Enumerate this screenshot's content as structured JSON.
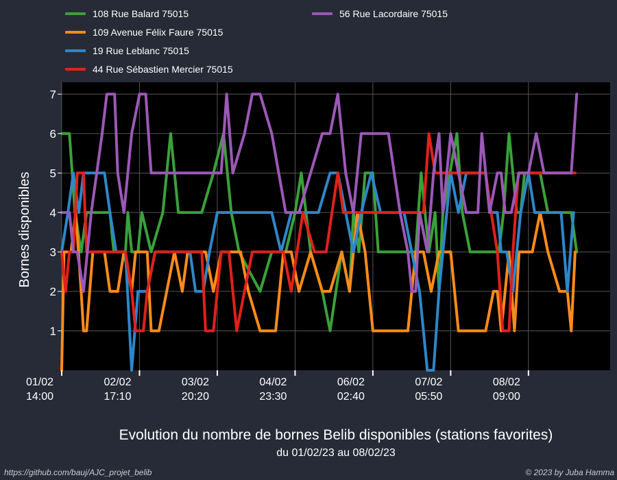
{
  "chart_data": {
    "type": "line",
    "title": "Evolution du nombre de bornes Belib disponibles (stations favorites)",
    "subtitle": "du 01/02/23 au 08/02/23",
    "ylabel": "Bornes disponibles",
    "xlabel": "",
    "xlim": [
      0,
      7.05
    ],
    "ylim": [
      0,
      7.3
    ],
    "y_ticks": [
      1,
      2,
      3,
      4,
      5,
      6,
      7
    ],
    "x_ticks": [
      {
        "t": 0,
        "line1": "01/02",
        "line2": "14:00"
      },
      {
        "t": 1,
        "line1": "02/02",
        "line2": "17:10"
      },
      {
        "t": 2,
        "line1": "03/02",
        "line2": "20:20"
      },
      {
        "t": 3,
        "line1": "04/02",
        "line2": "23:30"
      },
      {
        "t": 4,
        "line1": "06/02",
        "line2": "02:40"
      },
      {
        "t": 5,
        "line1": "07/02",
        "line2": "05:50"
      },
      {
        "t": 6,
        "line1": "08/02",
        "line2": "09:00"
      }
    ],
    "x_unit_note": "",
    "grid": true,
    "legend_position": "top",
    "series": [
      {
        "name": "108 Rue Balard 75015",
        "color": "#3aa13a",
        "points": [
          [
            0,
            6
          ],
          [
            0.1,
            6
          ],
          [
            0.17,
            4
          ],
          [
            0.25,
            3
          ],
          [
            0.32,
            4
          ],
          [
            0.62,
            4
          ],
          [
            0.67,
            3
          ],
          [
            0.82,
            3
          ],
          [
            0.85,
            4
          ],
          [
            0.9,
            3
          ],
          [
            0.98,
            3
          ],
          [
            1.03,
            4
          ],
          [
            1.15,
            3
          ],
          [
            1.3,
            4
          ],
          [
            1.4,
            6
          ],
          [
            1.5,
            4
          ],
          [
            1.65,
            4
          ],
          [
            1.8,
            4
          ],
          [
            1.95,
            5
          ],
          [
            2.08,
            6
          ],
          [
            2.18,
            4
          ],
          [
            2.28,
            3
          ],
          [
            2.55,
            2
          ],
          [
            2.7,
            3
          ],
          [
            2.88,
            3
          ],
          [
            3.0,
            4
          ],
          [
            3.08,
            5
          ],
          [
            3.2,
            3
          ],
          [
            3.35,
            2
          ],
          [
            3.45,
            1
          ],
          [
            3.6,
            3
          ],
          [
            3.7,
            2
          ],
          [
            3.75,
            4
          ],
          [
            3.82,
            3
          ],
          [
            3.9,
            5
          ],
          [
            4.0,
            5
          ],
          [
            4.07,
            3
          ],
          [
            4.4,
            3
          ],
          [
            4.55,
            3
          ],
          [
            4.62,
            5
          ],
          [
            4.72,
            3
          ],
          [
            4.8,
            4
          ],
          [
            4.85,
            2
          ],
          [
            4.9,
            4
          ],
          [
            5.08,
            6
          ],
          [
            5.15,
            4
          ],
          [
            5.25,
            3
          ],
          [
            5.5,
            3
          ],
          [
            5.62,
            3
          ],
          [
            5.68,
            4
          ],
          [
            5.75,
            6
          ],
          [
            5.85,
            4
          ],
          [
            5.9,
            4
          ],
          [
            5.95,
            5
          ],
          [
            6.0,
            5
          ],
          [
            6.15,
            5
          ],
          [
            6.25,
            4
          ],
          [
            6.4,
            4
          ],
          [
            6.55,
            4
          ],
          [
            6.62,
            3
          ]
        ]
      },
      {
        "name": "109 Avenue Félix Faure 75015",
        "color": "#ff8c19",
        "points": [
          [
            0,
            0
          ],
          [
            0.03,
            3
          ],
          [
            0.12,
            3
          ],
          [
            0.18,
            4
          ],
          [
            0.25,
            2
          ],
          [
            0.28,
            1
          ],
          [
            0.32,
            1
          ],
          [
            0.4,
            3
          ],
          [
            0.55,
            3
          ],
          [
            0.62,
            2
          ],
          [
            0.72,
            2
          ],
          [
            0.8,
            3
          ],
          [
            0.9,
            2
          ],
          [
            0.95,
            3
          ],
          [
            1.1,
            3
          ],
          [
            1.15,
            1
          ],
          [
            1.25,
            1
          ],
          [
            1.35,
            2
          ],
          [
            1.45,
            3
          ],
          [
            1.55,
            2
          ],
          [
            1.62,
            3
          ],
          [
            1.75,
            3
          ],
          [
            1.85,
            3
          ],
          [
            1.95,
            2
          ],
          [
            2.05,
            3
          ],
          [
            2.3,
            3
          ],
          [
            2.4,
            2
          ],
          [
            2.55,
            1
          ],
          [
            2.75,
            1
          ],
          [
            2.85,
            3
          ],
          [
            2.95,
            3
          ],
          [
            3.05,
            2
          ],
          [
            3.2,
            3
          ],
          [
            3.35,
            2
          ],
          [
            3.45,
            2
          ],
          [
            3.6,
            3
          ],
          [
            3.7,
            2
          ],
          [
            3.8,
            4
          ],
          [
            3.9,
            3
          ],
          [
            4.0,
            1
          ],
          [
            4.45,
            1
          ],
          [
            4.55,
            3
          ],
          [
            4.65,
            3
          ],
          [
            4.75,
            2
          ],
          [
            4.85,
            3
          ],
          [
            5.0,
            3
          ],
          [
            5.1,
            1
          ],
          [
            5.45,
            1
          ],
          [
            5.55,
            2
          ],
          [
            5.6,
            2
          ],
          [
            5.65,
            1
          ],
          [
            5.7,
            2
          ],
          [
            5.75,
            3
          ],
          [
            5.82,
            1
          ],
          [
            5.88,
            3
          ],
          [
            5.95,
            3
          ],
          [
            6.05,
            3
          ],
          [
            6.15,
            4
          ],
          [
            6.25,
            3
          ],
          [
            6.4,
            2
          ],
          [
            6.5,
            2
          ],
          [
            6.55,
            1
          ],
          [
            6.6,
            3
          ]
        ]
      },
      {
        "name": "19 Rue Leblanc 75015",
        "color": "#2e87c9",
        "points": [
          [
            0,
            3
          ],
          [
            0.08,
            4
          ],
          [
            0.15,
            5
          ],
          [
            0.22,
            4
          ],
          [
            0.28,
            5
          ],
          [
            0.55,
            5
          ],
          [
            0.62,
            4
          ],
          [
            0.7,
            3
          ],
          [
            0.82,
            3
          ],
          [
            0.9,
            0
          ],
          [
            0.98,
            2
          ],
          [
            1.1,
            2
          ],
          [
            1.2,
            3
          ],
          [
            1.55,
            3
          ],
          [
            1.65,
            3
          ],
          [
            1.72,
            2
          ],
          [
            1.82,
            2
          ],
          [
            1.9,
            3
          ],
          [
            2.0,
            4
          ],
          [
            2.3,
            4
          ],
          [
            2.55,
            4
          ],
          [
            2.7,
            4
          ],
          [
            2.82,
            3
          ],
          [
            2.95,
            4
          ],
          [
            3.1,
            4
          ],
          [
            3.3,
            4
          ],
          [
            3.45,
            5
          ],
          [
            3.55,
            5
          ],
          [
            3.65,
            4
          ],
          [
            3.75,
            3
          ],
          [
            3.85,
            4
          ],
          [
            3.98,
            5
          ],
          [
            4.1,
            4
          ],
          [
            4.3,
            4
          ],
          [
            4.4,
            4
          ],
          [
            4.5,
            3
          ],
          [
            4.6,
            2
          ],
          [
            4.7,
            0
          ],
          [
            4.78,
            0
          ],
          [
            4.85,
            2
          ],
          [
            4.9,
            3
          ],
          [
            5.0,
            5
          ],
          [
            5.1,
            4
          ],
          [
            5.2,
            5
          ],
          [
            5.45,
            5
          ],
          [
            5.5,
            4
          ],
          [
            5.6,
            4
          ],
          [
            5.65,
            3
          ],
          [
            5.72,
            3
          ],
          [
            5.8,
            2
          ],
          [
            5.85,
            3
          ],
          [
            5.9,
            4
          ],
          [
            6.0,
            5
          ],
          [
            6.08,
            4
          ],
          [
            6.2,
            4
          ],
          [
            6.35,
            4
          ],
          [
            6.42,
            4
          ],
          [
            6.5,
            2
          ],
          [
            6.58,
            4
          ]
        ]
      },
      {
        "name": "44 Rue Sébastien Mercier 75015",
        "color": "#e0211b",
        "points": [
          [
            0,
            3
          ],
          [
            0.05,
            2
          ],
          [
            0.1,
            3
          ],
          [
            0.15,
            3
          ],
          [
            0.2,
            5
          ],
          [
            0.28,
            5
          ],
          [
            0.32,
            3
          ],
          [
            0.6,
            3
          ],
          [
            0.68,
            3
          ],
          [
            0.82,
            3
          ],
          [
            0.9,
            2
          ],
          [
            0.95,
            1
          ],
          [
            1.05,
            1
          ],
          [
            1.1,
            2
          ],
          [
            1.2,
            3
          ],
          [
            1.7,
            3
          ],
          [
            1.8,
            3
          ],
          [
            1.85,
            1
          ],
          [
            1.95,
            1
          ],
          [
            2.05,
            3
          ],
          [
            2.15,
            3
          ],
          [
            2.25,
            1
          ],
          [
            2.45,
            3
          ],
          [
            2.65,
            3
          ],
          [
            2.85,
            3
          ],
          [
            2.95,
            2
          ],
          [
            3.1,
            4
          ],
          [
            3.25,
            3
          ],
          [
            3.4,
            3
          ],
          [
            3.55,
            5
          ],
          [
            3.62,
            4
          ],
          [
            3.75,
            4
          ],
          [
            4.1,
            4
          ],
          [
            4.3,
            4
          ],
          [
            4.5,
            4
          ],
          [
            4.65,
            4
          ],
          [
            4.72,
            6
          ],
          [
            4.8,
            5
          ],
          [
            4.9,
            5
          ],
          [
            5.0,
            5
          ],
          [
            5.1,
            5
          ],
          [
            5.25,
            5
          ],
          [
            5.35,
            5
          ],
          [
            5.45,
            5
          ],
          [
            5.52,
            4
          ],
          [
            5.6,
            3
          ],
          [
            5.67,
            1
          ],
          [
            5.75,
            1
          ],
          [
            5.8,
            3
          ],
          [
            5.87,
            5
          ],
          [
            6.0,
            5
          ],
          [
            6.2,
            5
          ],
          [
            6.45,
            5
          ],
          [
            6.6,
            5
          ]
        ]
      },
      {
        "name": "56 Rue Lacordaire 75015",
        "color": "#9b59b6",
        "points": [
          [
            0,
            4
          ],
          [
            0.1,
            4
          ],
          [
            0.15,
            3
          ],
          [
            0.2,
            3
          ],
          [
            0.28,
            2
          ],
          [
            0.38,
            4
          ],
          [
            0.45,
            5
          ],
          [
            0.52,
            6
          ],
          [
            0.58,
            7
          ],
          [
            0.68,
            7
          ],
          [
            0.72,
            5
          ],
          [
            0.8,
            4
          ],
          [
            0.9,
            6
          ],
          [
            1.0,
            7
          ],
          [
            1.08,
            7
          ],
          [
            1.15,
            5
          ],
          [
            1.3,
            5
          ],
          [
            1.6,
            5
          ],
          [
            1.8,
            5
          ],
          [
            1.95,
            5
          ],
          [
            2.05,
            5
          ],
          [
            2.12,
            7
          ],
          [
            2.2,
            5
          ],
          [
            2.35,
            6
          ],
          [
            2.45,
            7
          ],
          [
            2.55,
            7
          ],
          [
            2.7,
            6
          ],
          [
            2.88,
            4
          ],
          [
            3.05,
            4
          ],
          [
            3.2,
            5
          ],
          [
            3.35,
            6
          ],
          [
            3.45,
            6
          ],
          [
            3.55,
            7
          ],
          [
            3.65,
            5
          ],
          [
            3.75,
            4
          ],
          [
            3.85,
            6
          ],
          [
            4.2,
            6
          ],
          [
            4.35,
            4
          ],
          [
            4.45,
            3
          ],
          [
            4.5,
            2
          ],
          [
            4.55,
            2
          ],
          [
            4.6,
            4
          ],
          [
            4.7,
            3
          ],
          [
            4.78,
            5
          ],
          [
            4.85,
            6
          ],
          [
            4.9,
            4
          ],
          [
            5.0,
            6
          ],
          [
            5.1,
            5
          ],
          [
            5.2,
            4
          ],
          [
            5.25,
            4
          ],
          [
            5.35,
            4
          ],
          [
            5.4,
            6
          ],
          [
            5.5,
            4
          ],
          [
            5.6,
            5
          ],
          [
            5.65,
            5
          ],
          [
            5.7,
            4
          ],
          [
            5.78,
            4
          ],
          [
            5.88,
            5
          ],
          [
            6.0,
            5
          ],
          [
            6.1,
            6
          ],
          [
            6.2,
            5
          ],
          [
            6.35,
            5
          ],
          [
            6.45,
            5
          ],
          [
            6.55,
            5
          ],
          [
            6.62,
            7
          ]
        ]
      }
    ]
  },
  "footer": {
    "source": "https://github.com/bauj/AJC_projet_belib",
    "credit": "© 2023 by Juba Hamma"
  }
}
